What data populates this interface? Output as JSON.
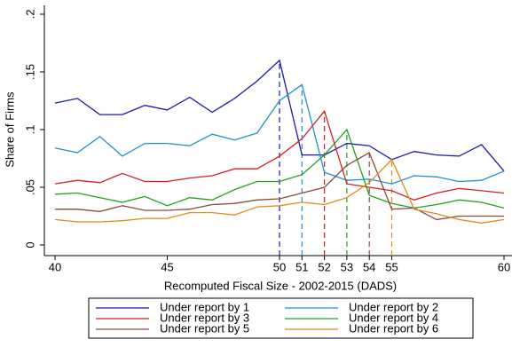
{
  "chart_data": {
    "type": "line",
    "x_label": "Recomputed Fiscal Size - 2002-2015 (DADS)",
    "y_label": "Share of Firms",
    "x": [
      40,
      41,
      42,
      43,
      44,
      45,
      46,
      47,
      48,
      49,
      50,
      51,
      52,
      53,
      54,
      55,
      56,
      57,
      58,
      59,
      60
    ],
    "xlim": [
      40,
      60
    ],
    "xticks": [
      40,
      45,
      50,
      51,
      52,
      53,
      54,
      55,
      60
    ],
    "ylim": [
      0,
      0.2
    ],
    "yticks": [
      0,
      {
        "value": 0.05,
        "label": ".05"
      },
      {
        "value": 0.1,
        "label": ".1"
      },
      {
        "value": 0.15,
        "label": ".15"
      },
      {
        "value": 0.2,
        "label": ".2"
      }
    ],
    "series": [
      {
        "name": "Under report by 1",
        "color": "#1a1aa8",
        "values": [
          0.123,
          0.127,
          0.113,
          0.113,
          0.121,
          0.117,
          0.128,
          0.115,
          0.127,
          0.142,
          0.16,
          0.078,
          0.078,
          0.088,
          0.086,
          0.074,
          0.081,
          0.078,
          0.077,
          0.087,
          0.064
        ]
      },
      {
        "name": "Under report by 2",
        "color": "#1e90d8",
        "values": [
          0.084,
          0.08,
          0.094,
          0.077,
          0.088,
          0.088,
          0.086,
          0.096,
          0.091,
          0.097,
          0.125,
          0.139,
          0.063,
          0.056,
          0.057,
          0.053,
          0.06,
          0.059,
          0.055,
          0.056,
          0.064
        ]
      },
      {
        "name": "Under report by 3",
        "color": "#d62020",
        "values": [
          0.053,
          0.056,
          0.054,
          0.062,
          0.055,
          0.055,
          0.058,
          0.06,
          0.066,
          0.066,
          0.077,
          0.092,
          0.116,
          0.053,
          0.05,
          0.047,
          0.039,
          0.045,
          0.049,
          0.047,
          0.045
        ]
      },
      {
        "name": "Under report by 4",
        "color": "#20a020",
        "values": [
          0.044,
          0.045,
          0.041,
          0.037,
          0.042,
          0.034,
          0.041,
          0.039,
          0.048,
          0.055,
          0.055,
          0.061,
          0.078,
          0.1,
          0.043,
          0.036,
          0.032,
          0.035,
          0.039,
          0.037,
          0.032
        ]
      },
      {
        "name": "Under report by 5",
        "color": "#8c4a3c",
        "values": [
          0.031,
          0.031,
          0.029,
          0.034,
          0.03,
          0.03,
          0.031,
          0.035,
          0.036,
          0.039,
          0.04,
          0.045,
          0.05,
          0.069,
          0.08,
          0.031,
          0.032,
          0.022,
          0.025,
          0.025,
          0.025
        ]
      },
      {
        "name": "Under report by 6",
        "color": "#e08a18",
        "values": [
          0.022,
          0.02,
          0.02,
          0.021,
          0.023,
          0.023,
          0.028,
          0.028,
          0.026,
          0.033,
          0.034,
          0.037,
          0.035,
          0.041,
          0.054,
          0.074,
          0.031,
          0.027,
          0.022,
          0.019,
          0.022
        ]
      }
    ]
  }
}
